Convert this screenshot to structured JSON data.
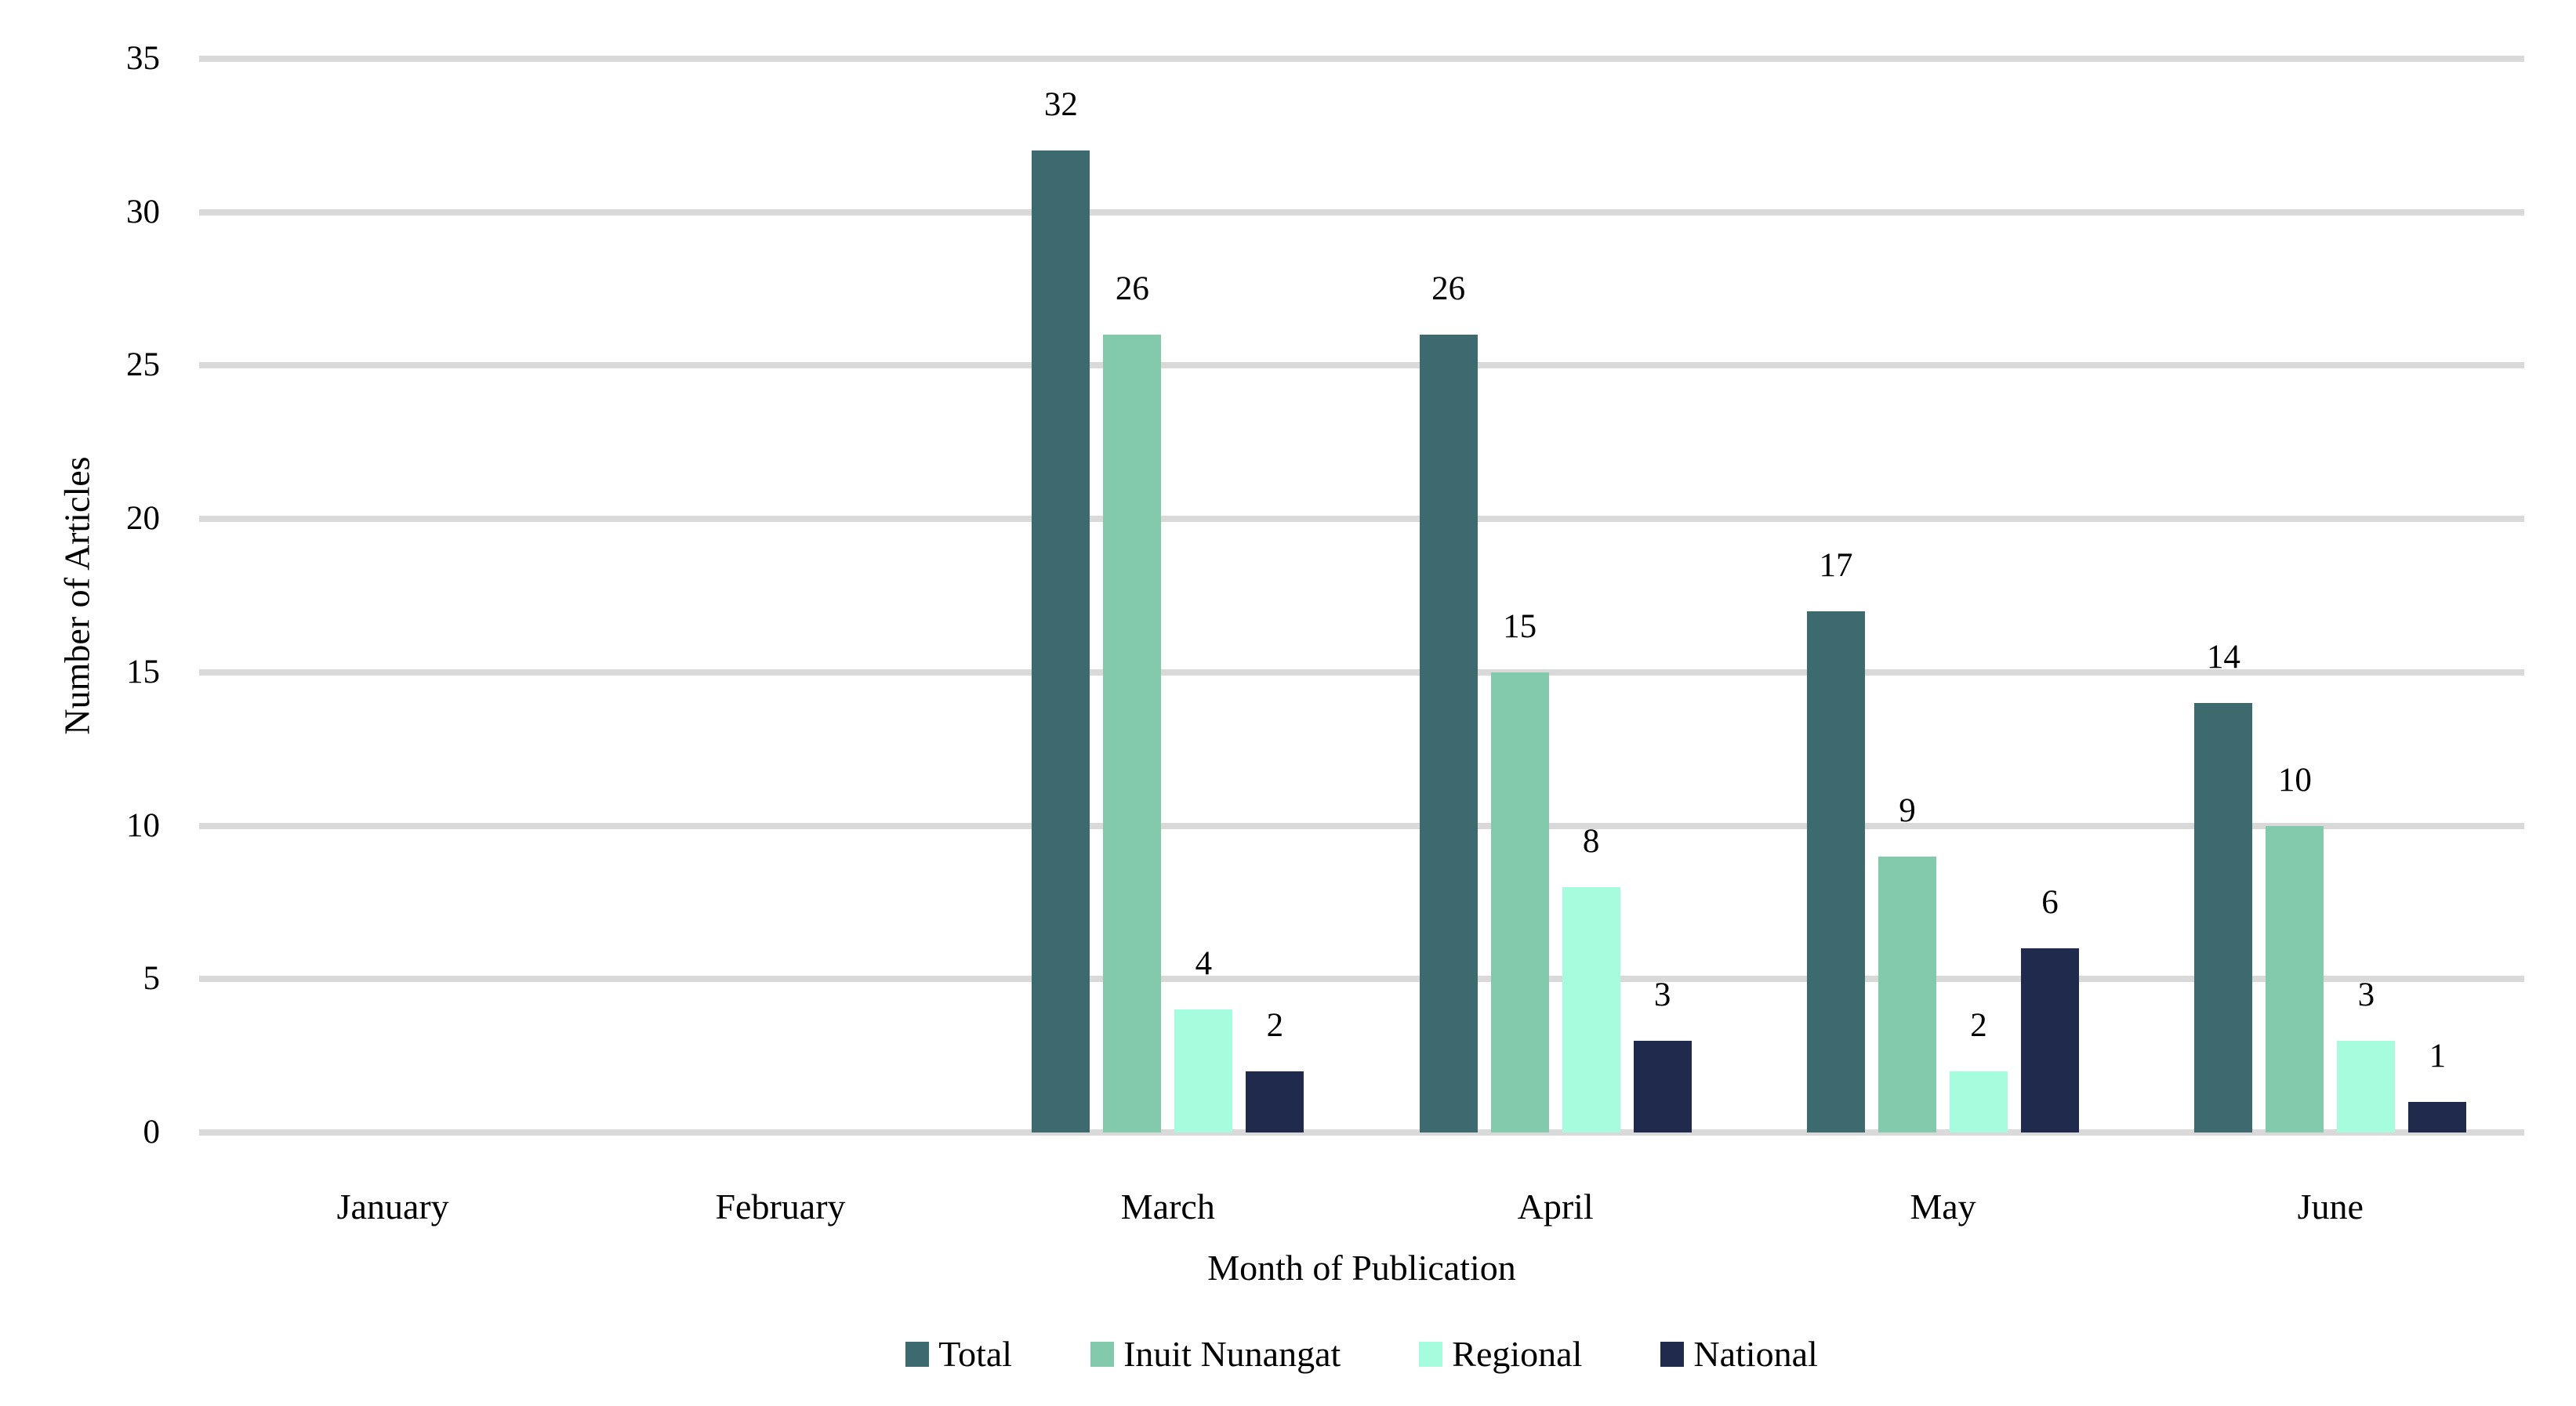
{
  "chart_data": {
    "type": "bar",
    "title": "",
    "xlabel": "Month of Publication",
    "ylabel": "Number of Articles",
    "categories": [
      "January",
      "February",
      "March",
      "April",
      "May",
      "June"
    ],
    "series": [
      {
        "name": "Total",
        "color": "#3D6A6F",
        "values": [
          0,
          0,
          32,
          26,
          17,
          14
        ]
      },
      {
        "name": "Inuit Nunangat",
        "color": "#83CAAC",
        "values": [
          0,
          0,
          26,
          15,
          9,
          10
        ]
      },
      {
        "name": "Regional",
        "color": "#A5FDDE",
        "values": [
          0,
          0,
          4,
          8,
          2,
          3
        ]
      },
      {
        "name": "National",
        "color": "#1F2A4D",
        "values": [
          0,
          0,
          2,
          3,
          6,
          1
        ]
      }
    ],
    "ylim": [
      0,
      35
    ],
    "yticks": [
      0,
      5,
      10,
      15,
      20,
      25,
      30,
      35
    ],
    "grid": "horizontal",
    "gridline_color": "#D9D9D9",
    "background_color": "#FFFFFF",
    "text_color": "#000000",
    "data_label_position": "outside-end",
    "data_labels_hidden_for_zero": true,
    "legend": {
      "position": "bottom",
      "entries": [
        "Total",
        "Inuit Nunangat",
        "Regional",
        "National"
      ]
    }
  }
}
